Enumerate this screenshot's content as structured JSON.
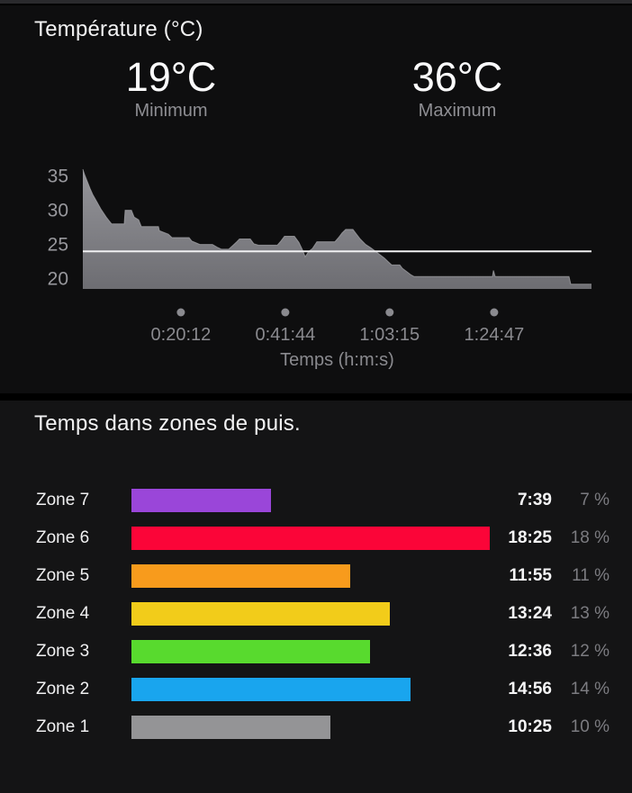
{
  "temperature_section": {
    "title": "Température (°C)",
    "min_value": "19°C",
    "min_label": "Minimum",
    "max_value": "36°C",
    "max_label": "Maximum"
  },
  "zones_section": {
    "title": "Temps dans zones de puis."
  },
  "colors": {
    "background": "#000000",
    "panel_temp": "#0e0e0f",
    "panel_zones": "#141415",
    "title_text": "#f2f2f3",
    "value_text": "#fbfbfc",
    "secondary_text": "#8e8e93",
    "percent_text": "#7c7c81"
  },
  "chart_data": [
    {
      "type": "area",
      "title": "Température (°C)",
      "xlabel": "Temps (h:m:s)",
      "ylabel": "",
      "x_seconds": [
        0,
        22,
        56,
        89,
        122,
        156,
        189,
        223,
        256,
        290,
        323,
        356,
        512,
        523,
        601,
        635,
        690,
        724,
        935,
        947,
        1058,
        1102,
        1314,
        1347,
        1448,
        1603,
        1659,
        1715,
        1804,
        1859,
        1904,
        1937,
        2071,
        2115,
        2171,
        2405,
        2450,
        2494,
        2617,
        2672,
        2717,
        2750,
        2795,
        2839,
        2895,
        3118,
        3162,
        3207,
        3251,
        3340,
        3385,
        3430,
        3497,
        3563,
        3619,
        3675,
        3730,
        3775,
        3820,
        3920,
        3953,
        4009,
        4053,
        4098,
        5066,
        5078,
        5100,
        6013,
        6035,
        6291
      ],
      "temps_c": [
        36,
        35.2,
        34.2,
        33.2,
        32.3,
        31.6,
        30.9,
        30.2,
        29.6,
        29.0,
        28.5,
        28.0,
        28.0,
        30.0,
        30.0,
        29.0,
        28.6,
        27.6,
        27.6,
        27.0,
        26.5,
        26.0,
        26.0,
        25.5,
        25.0,
        25.0,
        24.6,
        24.3,
        24.3,
        24.9,
        25.4,
        25.8,
        25.8,
        25.1,
        24.9,
        24.9,
        25.5,
        26.2,
        26.2,
        25.3,
        24.2,
        23.2,
        24.0,
        24.4,
        25.4,
        25.4,
        26.0,
        26.7,
        27.2,
        27.2,
        26.5,
        25.8,
        25.0,
        24.5,
        24.0,
        23.5,
        23.0,
        22.5,
        22.0,
        22.0,
        21.5,
        21.0,
        20.6,
        20.3,
        20.3,
        21.2,
        20.3,
        20.3,
        19.2,
        19.2
      ],
      "average_line_c": 24,
      "yticks": [
        20,
        25,
        30,
        35
      ],
      "xticks": [
        {
          "seconds": 1212,
          "label": "0:20:12"
        },
        {
          "seconds": 2504,
          "label": "0:41:44"
        },
        {
          "seconds": 3795,
          "label": "1:03:15"
        },
        {
          "seconds": 5087,
          "label": "1:24:47"
        }
      ],
      "xlim_seconds": [
        0,
        6291
      ],
      "ylim_c": [
        18.5,
        36.8
      ],
      "grid": false,
      "fill_top_color": "#95959a",
      "fill_bottom_color": "#6d6d72",
      "edge_color": "#a8a8ad",
      "average_line_color": "#f0f0f2",
      "tick_text_color": "#98989d",
      "axis_text_color": "#8a8a8f",
      "dot_color": "#8a8a8f"
    },
    {
      "type": "bar",
      "title": "Temps dans zones de puis.",
      "orientation": "horizontal",
      "rows": [
        {
          "label": "Zone 7",
          "time": "7:39",
          "percent_label": "7 %",
          "percent": 7,
          "color": "#9a46d9"
        },
        {
          "label": "Zone 6",
          "time": "18:25",
          "percent_label": "18 %",
          "percent": 18,
          "color": "#fb0538"
        },
        {
          "label": "Zone 5",
          "time": "11:55",
          "percent_label": "11 %",
          "percent": 11,
          "color": "#f89b1c"
        },
        {
          "label": "Zone 4",
          "time": "13:24",
          "percent_label": "13 %",
          "percent": 13,
          "color": "#f2cc1a"
        },
        {
          "label": "Zone 3",
          "time": "12:36",
          "percent_label": "12 %",
          "percent": 12,
          "color": "#58da2e"
        },
        {
          "label": "Zone 2",
          "time": "14:56",
          "percent_label": "14 %",
          "percent": 14,
          "color": "#19a5ee"
        },
        {
          "label": "Zone 1",
          "time": "10:25",
          "percent_label": "10 %",
          "percent": 10,
          "color": "#949496"
        }
      ]
    }
  ]
}
